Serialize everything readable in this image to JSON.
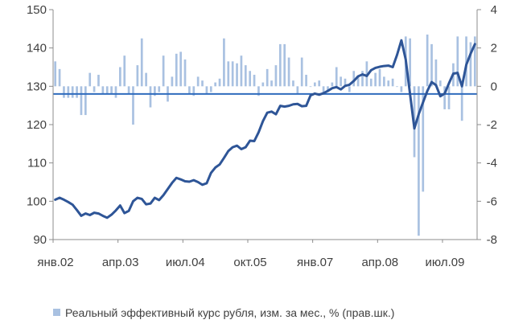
{
  "chart_data": {
    "type": "bar",
    "title": "",
    "xlabel": "",
    "ylabel": "",
    "x_tick_labels": [
      "янв.02",
      "апр.03",
      "июл.04",
      "окт.05",
      "янв.07",
      "апр.08",
      "июл.09"
    ],
    "left_axis": {
      "range": [
        90,
        150
      ],
      "ticks": [
        90,
        100,
        110,
        120,
        130,
        140,
        150
      ]
    },
    "right_axis": {
      "range": [
        -8,
        4
      ],
      "ticks": [
        -8,
        -6,
        -4,
        -2,
        0,
        2,
        4
      ]
    },
    "reference_line": {
      "axis": "left",
      "value": 128
    },
    "legend": {
      "position": "bottom"
    },
    "series": [
      {
        "name": "Реальный эффективный курс рубля, изм. за мес., % (прав.шк.)",
        "type": "bar",
        "axis": "right",
        "color": "#a9c1e1",
        "values": [
          1.3,
          0.9,
          -0.6,
          -0.6,
          -0.6,
          -0.6,
          -1.5,
          -1.5,
          0.7,
          -0.3,
          0.6,
          -0.4,
          -0.4,
          -0.4,
          -0.6,
          1.0,
          1.6,
          -0.4,
          -2.0,
          1.1,
          2.5,
          0.7,
          -1.1,
          -0.5,
          -0.3,
          1.6,
          -0.8,
          0.5,
          1.7,
          1.8,
          1.4,
          -0.4,
          -0.5,
          0.5,
          0.3,
          -0.4,
          -0.3,
          0.2,
          0.4,
          2.5,
          1.3,
          1.3,
          1.2,
          1.6,
          1.1,
          0.8,
          0.6,
          -0.5,
          0.2,
          0.9,
          0.3,
          1.1,
          2.2,
          2.2,
          1.5,
          0.3,
          -0.4,
          1.5,
          0.6,
          0.0,
          0.2,
          0.3,
          -0.4,
          -0.3,
          0.2,
          1.0,
          0.5,
          0.4,
          -0.3,
          0.8,
          0.5,
          0.8,
          1.3,
          0.4,
          0.7,
          0.9,
          0.5,
          0.3,
          0.4,
          0.0,
          -0.3,
          2.6,
          2.5,
          -3.7,
          -7.8,
          -5.5,
          2.7,
          2.2,
          1.4,
          0.3,
          -1.2,
          -1.2,
          1.2,
          2.6,
          -1.8,
          2.6,
          2.3,
          2.6
        ]
      },
      {
        "name": "",
        "type": "line",
        "axis": "left",
        "color": "#2e5597",
        "values": [
          100.4,
          100.9,
          100.4,
          99.8,
          99.1,
          97.7,
          96.2,
          96.8,
          96.4,
          97.0,
          96.8,
          96.2,
          95.7,
          96.5,
          97.6,
          98.9,
          96.9,
          97.5,
          100.0,
          100.9,
          100.6,
          99.2,
          99.4,
          100.9,
          100.3,
          101.6,
          103.2,
          104.8,
          106.1,
          105.7,
          105.2,
          105.1,
          105.5,
          105.0,
          104.3,
          104.7,
          107.4,
          108.8,
          109.6,
          111.3,
          113.1,
          114.1,
          114.5,
          113.6,
          114.1,
          115.8,
          115.7,
          118.0,
          120.9,
          123.1,
          123.4,
          122.7,
          124.9,
          124.7,
          124.9,
          125.3,
          125.4,
          124.8,
          124.9,
          127.6,
          128.1,
          127.8,
          128.2,
          128.8,
          129.5,
          129.8,
          129.2,
          130.1,
          130.4,
          131.4,
          132.6,
          133.1,
          132.7,
          134.2,
          134.8,
          135.1,
          135.3,
          135.4,
          135.0,
          138.2,
          142.0,
          137.0,
          128.0,
          119.0,
          122.7,
          125.8,
          128.8,
          131.1,
          130.3,
          127.4,
          128.1,
          130.8,
          133.3,
          133.5,
          130.0,
          135.6,
          138.5,
          141.0
        ]
      }
    ]
  }
}
